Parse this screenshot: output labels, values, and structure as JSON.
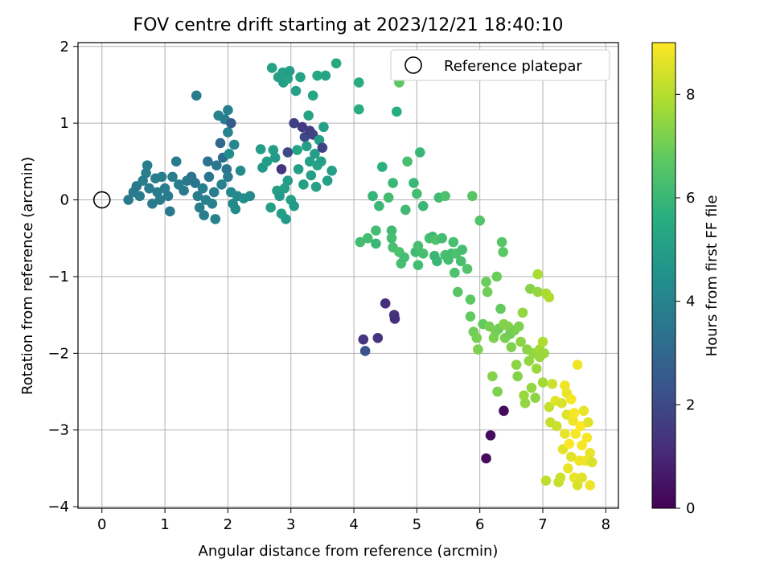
{
  "chart_data": {
    "type": "scatter",
    "title": "FOV centre drift starting at 2023/12/21 18:40:10",
    "xlabel": "Angular distance from reference (arcmin)",
    "ylabel": "Rotation from reference (arcmin)",
    "xlim": [
      -0.38,
      8.2
    ],
    "ylim": [
      -4.02,
      2.05
    ],
    "xticks": [
      0,
      1,
      2,
      3,
      4,
      5,
      6,
      7,
      8
    ],
    "yticks": [
      2,
      1,
      0,
      -1,
      -2,
      -3,
      -4
    ],
    "grid": true,
    "legend": {
      "position": "top-right",
      "label": "Reference platepar",
      "marker": "open-circle"
    },
    "reference_point": {
      "x": 0,
      "y": 0
    },
    "colorbar": {
      "label": "Hours from first FF file",
      "range": [
        0,
        9
      ],
      "ticks": [
        0,
        2,
        4,
        6,
        8
      ],
      "colormap": "viridis"
    },
    "points": [
      {
        "x": 0.42,
        "y": 0.0,
        "h": 3.7
      },
      {
        "x": 0.5,
        "y": 0.1,
        "h": 3.7
      },
      {
        "x": 0.55,
        "y": 0.18,
        "h": 3.6
      },
      {
        "x": 0.6,
        "y": 0.05,
        "h": 3.7
      },
      {
        "x": 0.65,
        "y": 0.25,
        "h": 3.8
      },
      {
        "x": 0.7,
        "y": 0.35,
        "h": 3.8
      },
      {
        "x": 0.72,
        "y": 0.45,
        "h": 3.8
      },
      {
        "x": 0.75,
        "y": 0.15,
        "h": 3.7
      },
      {
        "x": 0.8,
        "y": -0.05,
        "h": 3.7
      },
      {
        "x": 0.85,
        "y": 0.28,
        "h": 3.8
      },
      {
        "x": 0.88,
        "y": 0.1,
        "h": 3.7
      },
      {
        "x": 0.92,
        "y": 0.0,
        "h": 3.7
      },
      {
        "x": 0.95,
        "y": 0.3,
        "h": 3.8
      },
      {
        "x": 1.0,
        "y": 0.15,
        "h": 3.7
      },
      {
        "x": 1.05,
        "y": 0.05,
        "h": 3.7
      },
      {
        "x": 1.08,
        "y": -0.15,
        "h": 3.6
      },
      {
        "x": 1.12,
        "y": 0.3,
        "h": 3.8
      },
      {
        "x": 1.18,
        "y": 0.5,
        "h": 3.7
      },
      {
        "x": 1.22,
        "y": 0.2,
        "h": 3.8
      },
      {
        "x": 1.3,
        "y": 0.12,
        "h": 3.7
      },
      {
        "x": 1.35,
        "y": 0.25,
        "h": 3.6
      },
      {
        "x": 1.42,
        "y": 0.3,
        "h": 3.5
      },
      {
        "x": 1.48,
        "y": 0.22,
        "h": 3.5
      },
      {
        "x": 1.5,
        "y": 1.36,
        "h": 3.7
      },
      {
        "x": 1.52,
        "y": 0.05,
        "h": 3.8
      },
      {
        "x": 1.55,
        "y": -0.1,
        "h": 3.8
      },
      {
        "x": 1.6,
        "y": 0.15,
        "h": 3.9
      },
      {
        "x": 1.62,
        "y": -0.2,
        "h": 3.8
      },
      {
        "x": 1.65,
        "y": 0.0,
        "h": 3.9
      },
      {
        "x": 1.68,
        "y": 0.5,
        "h": 3.4
      },
      {
        "x": 1.7,
        "y": 0.3,
        "h": 3.5
      },
      {
        "x": 1.75,
        "y": -0.05,
        "h": 3.9
      },
      {
        "x": 1.78,
        "y": 0.1,
        "h": 3.8
      },
      {
        "x": 1.8,
        "y": -0.25,
        "h": 4.0
      },
      {
        "x": 1.82,
        "y": 0.45,
        "h": 3.6
      },
      {
        "x": 1.85,
        "y": 1.1,
        "h": 4.0
      },
      {
        "x": 1.88,
        "y": 0.74,
        "h": 3.0
      },
      {
        "x": 1.9,
        "y": 0.2,
        "h": 4.0
      },
      {
        "x": 1.92,
        "y": 0.55,
        "h": 3.2
      },
      {
        "x": 1.95,
        "y": 1.05,
        "h": 3.8
      },
      {
        "x": 1.98,
        "y": 0.4,
        "h": 3.5
      },
      {
        "x": 2.0,
        "y": 0.88,
        "h": 4.0
      },
      {
        "x": 2.0,
        "y": 0.3,
        "h": 3.7
      },
      {
        "x": 2.0,
        "y": 1.17,
        "h": 3.9
      },
      {
        "x": 2.02,
        "y": 0.6,
        "h": 4.4
      },
      {
        "x": 2.05,
        "y": 0.1,
        "h": 4.2
      },
      {
        "x": 2.05,
        "y": 1.0,
        "h": 2.6
      },
      {
        "x": 2.08,
        "y": -0.05,
        "h": 4.2
      },
      {
        "x": 2.1,
        "y": 0.72,
        "h": 4.1
      },
      {
        "x": 2.12,
        "y": -0.12,
        "h": 4.3
      },
      {
        "x": 2.15,
        "y": 0.05,
        "h": 4.2
      },
      {
        "x": 2.2,
        "y": 0.38,
        "h": 4.3
      },
      {
        "x": 2.25,
        "y": 0.02,
        "h": 4.4
      },
      {
        "x": 2.35,
        "y": 0.05,
        "h": 4.3
      },
      {
        "x": 2.52,
        "y": 0.66,
        "h": 5.0
      },
      {
        "x": 2.55,
        "y": 0.42,
        "h": 4.8
      },
      {
        "x": 2.62,
        "y": 0.5,
        "h": 5.0
      },
      {
        "x": 2.68,
        "y": -0.1,
        "h": 5.0
      },
      {
        "x": 2.7,
        "y": 1.72,
        "h": 5.2
      },
      {
        "x": 2.72,
        "y": 0.65,
        "h": 5.0
      },
      {
        "x": 2.75,
        "y": 0.55,
        "h": 4.9
      },
      {
        "x": 2.78,
        "y": 0.12,
        "h": 5.0
      },
      {
        "x": 2.8,
        "y": 1.6,
        "h": 5.1
      },
      {
        "x": 2.82,
        "y": 0.05,
        "h": 4.8
      },
      {
        "x": 2.85,
        "y": -0.18,
        "h": 5.0
      },
      {
        "x": 2.85,
        "y": 0.4,
        "h": 1.4
      },
      {
        "x": 2.87,
        "y": 1.66,
        "h": 5.1
      },
      {
        "x": 2.88,
        "y": 1.53,
        "h": 5.0
      },
      {
        "x": 2.9,
        "y": 0.15,
        "h": 5.1
      },
      {
        "x": 2.92,
        "y": -0.25,
        "h": 4.9
      },
      {
        "x": 2.95,
        "y": 1.58,
        "h": 5.2
      },
      {
        "x": 2.95,
        "y": 0.62,
        "h": 2.0
      },
      {
        "x": 2.95,
        "y": 0.25,
        "h": 5.0
      },
      {
        "x": 2.98,
        "y": 1.68,
        "h": 5.0
      },
      {
        "x": 3.0,
        "y": 0.0,
        "h": 5.1
      },
      {
        "x": 3.05,
        "y": 1.0,
        "h": 1.7
      },
      {
        "x": 3.05,
        "y": -0.08,
        "h": 4.9
      },
      {
        "x": 3.08,
        "y": 1.42,
        "h": 5.1
      },
      {
        "x": 3.1,
        "y": 0.65,
        "h": 5.2
      },
      {
        "x": 3.12,
        "y": 0.4,
        "h": 5.0
      },
      {
        "x": 3.15,
        "y": 1.6,
        "h": 5.2
      },
      {
        "x": 3.18,
        "y": 0.95,
        "h": 1.5
      },
      {
        "x": 3.2,
        "y": 0.2,
        "h": 5.1
      },
      {
        "x": 3.22,
        "y": 0.82,
        "h": 2.0
      },
      {
        "x": 3.25,
        "y": 0.7,
        "h": 5.0
      },
      {
        "x": 3.28,
        "y": 1.1,
        "h": 5.2
      },
      {
        "x": 3.3,
        "y": 0.5,
        "h": 5.1
      },
      {
        "x": 3.3,
        "y": 0.9,
        "h": 1.6
      },
      {
        "x": 3.32,
        "y": 0.32,
        "h": 5.0
      },
      {
        "x": 3.35,
        "y": 0.85,
        "h": 1.8
      },
      {
        "x": 3.35,
        "y": 1.36,
        "h": 5.3
      },
      {
        "x": 3.38,
        "y": 0.6,
        "h": 5.0
      },
      {
        "x": 3.4,
        "y": 0.17,
        "h": 5.1
      },
      {
        "x": 3.42,
        "y": 0.45,
        "h": 5.2
      },
      {
        "x": 3.45,
        "y": 0.78,
        "h": 5.0
      },
      {
        "x": 3.48,
        "y": 0.5,
        "h": 5.0
      },
      {
        "x": 3.5,
        "y": 0.68,
        "h": 1.8
      },
      {
        "x": 3.52,
        "y": 0.95,
        "h": 5.1
      },
      {
        "x": 3.55,
        "y": 1.62,
        "h": 5.2
      },
      {
        "x": 3.58,
        "y": 0.25,
        "h": 5.1
      },
      {
        "x": 3.65,
        "y": 0.38,
        "h": 5.1
      },
      {
        "x": 3.72,
        "y": 1.78,
        "h": 5.4
      },
      {
        "x": 3.42,
        "y": 1.62,
        "h": 5.3
      },
      {
        "x": 4.08,
        "y": 1.53,
        "h": 5.6
      },
      {
        "x": 4.08,
        "y": 1.18,
        "h": 5.6
      },
      {
        "x": 4.1,
        "y": -0.55,
        "h": 6.2
      },
      {
        "x": 4.15,
        "y": -1.82,
        "h": 1.4
      },
      {
        "x": 4.18,
        "y": -1.97,
        "h": 2.3
      },
      {
        "x": 4.22,
        "y": -0.5,
        "h": 6.2
      },
      {
        "x": 4.3,
        "y": 0.05,
        "h": 5.9
      },
      {
        "x": 4.35,
        "y": -0.4,
        "h": 6.2
      },
      {
        "x": 4.35,
        "y": -0.57,
        "h": 6.0
      },
      {
        "x": 4.38,
        "y": -1.8,
        "h": 1.4
      },
      {
        "x": 4.4,
        "y": -0.08,
        "h": 6.0
      },
      {
        "x": 4.45,
        "y": 0.43,
        "h": 5.7
      },
      {
        "x": 4.5,
        "y": -1.35,
        "h": 1.2
      },
      {
        "x": 4.55,
        "y": 0.03,
        "h": 6.2
      },
      {
        "x": 4.6,
        "y": -0.4,
        "h": 6.1
      },
      {
        "x": 4.6,
        "y": -0.5,
        "h": 6.2
      },
      {
        "x": 4.62,
        "y": -0.62,
        "h": 6.3
      },
      {
        "x": 4.62,
        "y": 0.22,
        "h": 6.0
      },
      {
        "x": 4.64,
        "y": -1.5,
        "h": 1.4
      },
      {
        "x": 4.65,
        "y": -1.55,
        "h": 1.2
      },
      {
        "x": 4.68,
        "y": 1.15,
        "h": 5.6
      },
      {
        "x": 4.72,
        "y": -0.68,
        "h": 6.4
      },
      {
        "x": 4.72,
        "y": 1.53,
        "h": 6.7
      },
      {
        "x": 4.75,
        "y": -0.83,
        "h": 6.3
      },
      {
        "x": 4.8,
        "y": -0.75,
        "h": 6.2
      },
      {
        "x": 4.82,
        "y": -0.13,
        "h": 6.1
      },
      {
        "x": 4.85,
        "y": 0.5,
        "h": 6.3
      },
      {
        "x": 4.95,
        "y": 0.22,
        "h": 6.0
      },
      {
        "x": 4.98,
        "y": -0.68,
        "h": 6.1
      },
      {
        "x": 5.02,
        "y": -0.6,
        "h": 6.3
      },
      {
        "x": 5.02,
        "y": -0.85,
        "h": 6.2
      },
      {
        "x": 5.0,
        "y": 0.08,
        "h": 6.2
      },
      {
        "x": 5.05,
        "y": 0.62,
        "h": 6.0
      },
      {
        "x": 5.1,
        "y": -0.08,
        "h": 6.0
      },
      {
        "x": 5.1,
        "y": -0.7,
        "h": 6.3
      },
      {
        "x": 5.2,
        "y": -0.5,
        "h": 6.3
      },
      {
        "x": 5.25,
        "y": -0.48,
        "h": 6.1
      },
      {
        "x": 5.28,
        "y": -0.73,
        "h": 6.0
      },
      {
        "x": 5.3,
        "y": -0.52,
        "h": 6.4
      },
      {
        "x": 5.32,
        "y": -0.8,
        "h": 6.0
      },
      {
        "x": 5.35,
        "y": 0.03,
        "h": 6.1
      },
      {
        "x": 5.4,
        "y": -0.5,
        "h": 6.2
      },
      {
        "x": 5.45,
        "y": 0.05,
        "h": 6.4
      },
      {
        "x": 5.45,
        "y": -0.72,
        "h": 6.3
      },
      {
        "x": 5.5,
        "y": -0.78,
        "h": 6.2
      },
      {
        "x": 5.55,
        "y": -0.7,
        "h": 6.2
      },
      {
        "x": 5.58,
        "y": -0.55,
        "h": 6.3
      },
      {
        "x": 5.6,
        "y": -0.95,
        "h": 6.4
      },
      {
        "x": 5.62,
        "y": -0.7,
        "h": 6.4
      },
      {
        "x": 5.65,
        "y": -1.2,
        "h": 6.6
      },
      {
        "x": 5.7,
        "y": -0.8,
        "h": 6.3
      },
      {
        "x": 5.72,
        "y": -0.65,
        "h": 6.2
      },
      {
        "x": 5.8,
        "y": -0.9,
        "h": 6.5
      },
      {
        "x": 5.85,
        "y": -1.3,
        "h": 6.7
      },
      {
        "x": 5.85,
        "y": -1.52,
        "h": 6.8
      },
      {
        "x": 5.88,
        "y": 0.05,
        "h": 6.6
      },
      {
        "x": 5.9,
        "y": -1.72,
        "h": 7.0
      },
      {
        "x": 5.95,
        "y": -1.8,
        "h": 7.1
      },
      {
        "x": 5.97,
        "y": -1.95,
        "h": 7.2
      },
      {
        "x": 6.0,
        "y": -0.27,
        "h": 6.5
      },
      {
        "x": 6.05,
        "y": -1.62,
        "h": 6.8
      },
      {
        "x": 6.1,
        "y": -1.07,
        "h": 6.9
      },
      {
        "x": 6.1,
        "y": -3.37,
        "h": 0.3
      },
      {
        "x": 6.12,
        "y": -1.2,
        "h": 7.0
      },
      {
        "x": 6.15,
        "y": -1.65,
        "h": 7.1
      },
      {
        "x": 6.17,
        "y": -3.07,
        "h": 0.3
      },
      {
        "x": 6.2,
        "y": -2.3,
        "h": 7.3
      },
      {
        "x": 6.22,
        "y": -1.8,
        "h": 7.2
      },
      {
        "x": 6.25,
        "y": -1.72,
        "h": 7.1
      },
      {
        "x": 6.27,
        "y": -1.0,
        "h": 6.9
      },
      {
        "x": 6.28,
        "y": -2.5,
        "h": 7.2
      },
      {
        "x": 6.3,
        "y": -1.68,
        "h": 7.0
      },
      {
        "x": 6.33,
        "y": -1.42,
        "h": 6.8
      },
      {
        "x": 6.35,
        "y": -0.55,
        "h": 6.6
      },
      {
        "x": 6.37,
        "y": -0.68,
        "h": 6.7
      },
      {
        "x": 6.38,
        "y": -1.62,
        "h": 7.3
      },
      {
        "x": 6.38,
        "y": -2.75,
        "h": 0.3
      },
      {
        "x": 6.4,
        "y": -1.8,
        "h": 7.1
      },
      {
        "x": 6.45,
        "y": -1.65,
        "h": 7.3
      },
      {
        "x": 6.48,
        "y": -1.75,
        "h": 7.0
      },
      {
        "x": 6.5,
        "y": -1.92,
        "h": 7.2
      },
      {
        "x": 6.55,
        "y": -1.7,
        "h": 7.1
      },
      {
        "x": 6.58,
        "y": -2.15,
        "h": 7.4
      },
      {
        "x": 6.6,
        "y": -2.3,
        "h": 7.3
      },
      {
        "x": 6.62,
        "y": -1.65,
        "h": 7.2
      },
      {
        "x": 6.65,
        "y": -1.85,
        "h": 7.4
      },
      {
        "x": 6.68,
        "y": -1.47,
        "h": 7.5
      },
      {
        "x": 6.7,
        "y": -2.55,
        "h": 7.6
      },
      {
        "x": 6.72,
        "y": -2.65,
        "h": 7.5
      },
      {
        "x": 6.75,
        "y": -1.95,
        "h": 7.4
      },
      {
        "x": 6.78,
        "y": -2.1,
        "h": 7.5
      },
      {
        "x": 6.8,
        "y": -1.16,
        "h": 7.3
      },
      {
        "x": 6.82,
        "y": -2.45,
        "h": 7.5
      },
      {
        "x": 6.85,
        "y": -2.0,
        "h": 7.5
      },
      {
        "x": 6.88,
        "y": -2.58,
        "h": 7.4
      },
      {
        "x": 6.9,
        "y": -2.2,
        "h": 7.6
      },
      {
        "x": 6.92,
        "y": -0.97,
        "h": 7.8
      },
      {
        "x": 6.92,
        "y": -1.2,
        "h": 7.5
      },
      {
        "x": 6.95,
        "y": -1.95,
        "h": 7.7
      },
      {
        "x": 6.95,
        "y": -2.05,
        "h": 7.6
      },
      {
        "x": 7.0,
        "y": -2.38,
        "h": 7.7
      },
      {
        "x": 7.0,
        "y": -1.85,
        "h": 7.9
      },
      {
        "x": 7.02,
        "y": -2.0,
        "h": 7.6
      },
      {
        "x": 7.05,
        "y": -1.22,
        "h": 7.8
      },
      {
        "x": 7.05,
        "y": -3.66,
        "h": 8.1
      },
      {
        "x": 7.1,
        "y": -1.27,
        "h": 7.9
      },
      {
        "x": 7.1,
        "y": -2.7,
        "h": 8.2
      },
      {
        "x": 7.12,
        "y": -2.9,
        "h": 8.2
      },
      {
        "x": 7.15,
        "y": -2.4,
        "h": 8.3
      },
      {
        "x": 7.2,
        "y": -2.62,
        "h": 8.6
      },
      {
        "x": 7.22,
        "y": -2.95,
        "h": 8.3
      },
      {
        "x": 7.25,
        "y": -3.68,
        "h": 8.2
      },
      {
        "x": 7.28,
        "y": -3.62,
        "h": 8.3
      },
      {
        "x": 7.3,
        "y": -2.65,
        "h": 8.5
      },
      {
        "x": 7.32,
        "y": -3.25,
        "h": 8.6
      },
      {
        "x": 7.35,
        "y": -3.05,
        "h": 8.7
      },
      {
        "x": 7.35,
        "y": -2.42,
        "h": 8.8
      },
      {
        "x": 7.38,
        "y": -2.52,
        "h": 8.7
      },
      {
        "x": 7.38,
        "y": -2.8,
        "h": 8.6
      },
      {
        "x": 7.4,
        "y": -3.5,
        "h": 8.7
      },
      {
        "x": 7.42,
        "y": -3.18,
        "h": 9.0
      },
      {
        "x": 7.45,
        "y": -2.6,
        "h": 8.9
      },
      {
        "x": 7.45,
        "y": -3.35,
        "h": 8.6
      },
      {
        "x": 7.48,
        "y": -2.88,
        "h": 8.8
      },
      {
        "x": 7.5,
        "y": -3.62,
        "h": 8.7
      },
      {
        "x": 7.52,
        "y": -3.05,
        "h": 8.9
      },
      {
        "x": 7.55,
        "y": -2.15,
        "h": 8.8
      },
      {
        "x": 7.55,
        "y": -3.72,
        "h": 8.5
      },
      {
        "x": 7.58,
        "y": -3.4,
        "h": 8.8
      },
      {
        "x": 7.6,
        "y": -2.95,
        "h": 9.0
      },
      {
        "x": 7.62,
        "y": -3.2,
        "h": 8.9
      },
      {
        "x": 7.62,
        "y": -3.62,
        "h": 8.6
      },
      {
        "x": 7.65,
        "y": -2.75,
        "h": 8.7
      },
      {
        "x": 7.68,
        "y": -3.4,
        "h": 8.8
      },
      {
        "x": 7.7,
        "y": -3.1,
        "h": 8.9
      },
      {
        "x": 7.72,
        "y": -2.9,
        "h": 8.6
      },
      {
        "x": 7.75,
        "y": -3.72,
        "h": 8.8
      },
      {
        "x": 7.75,
        "y": -3.3,
        "h": 8.7
      },
      {
        "x": 7.78,
        "y": -3.42,
        "h": 8.5
      },
      {
        "x": 7.5,
        "y": -2.78,
        "h": 8.9
      }
    ]
  }
}
